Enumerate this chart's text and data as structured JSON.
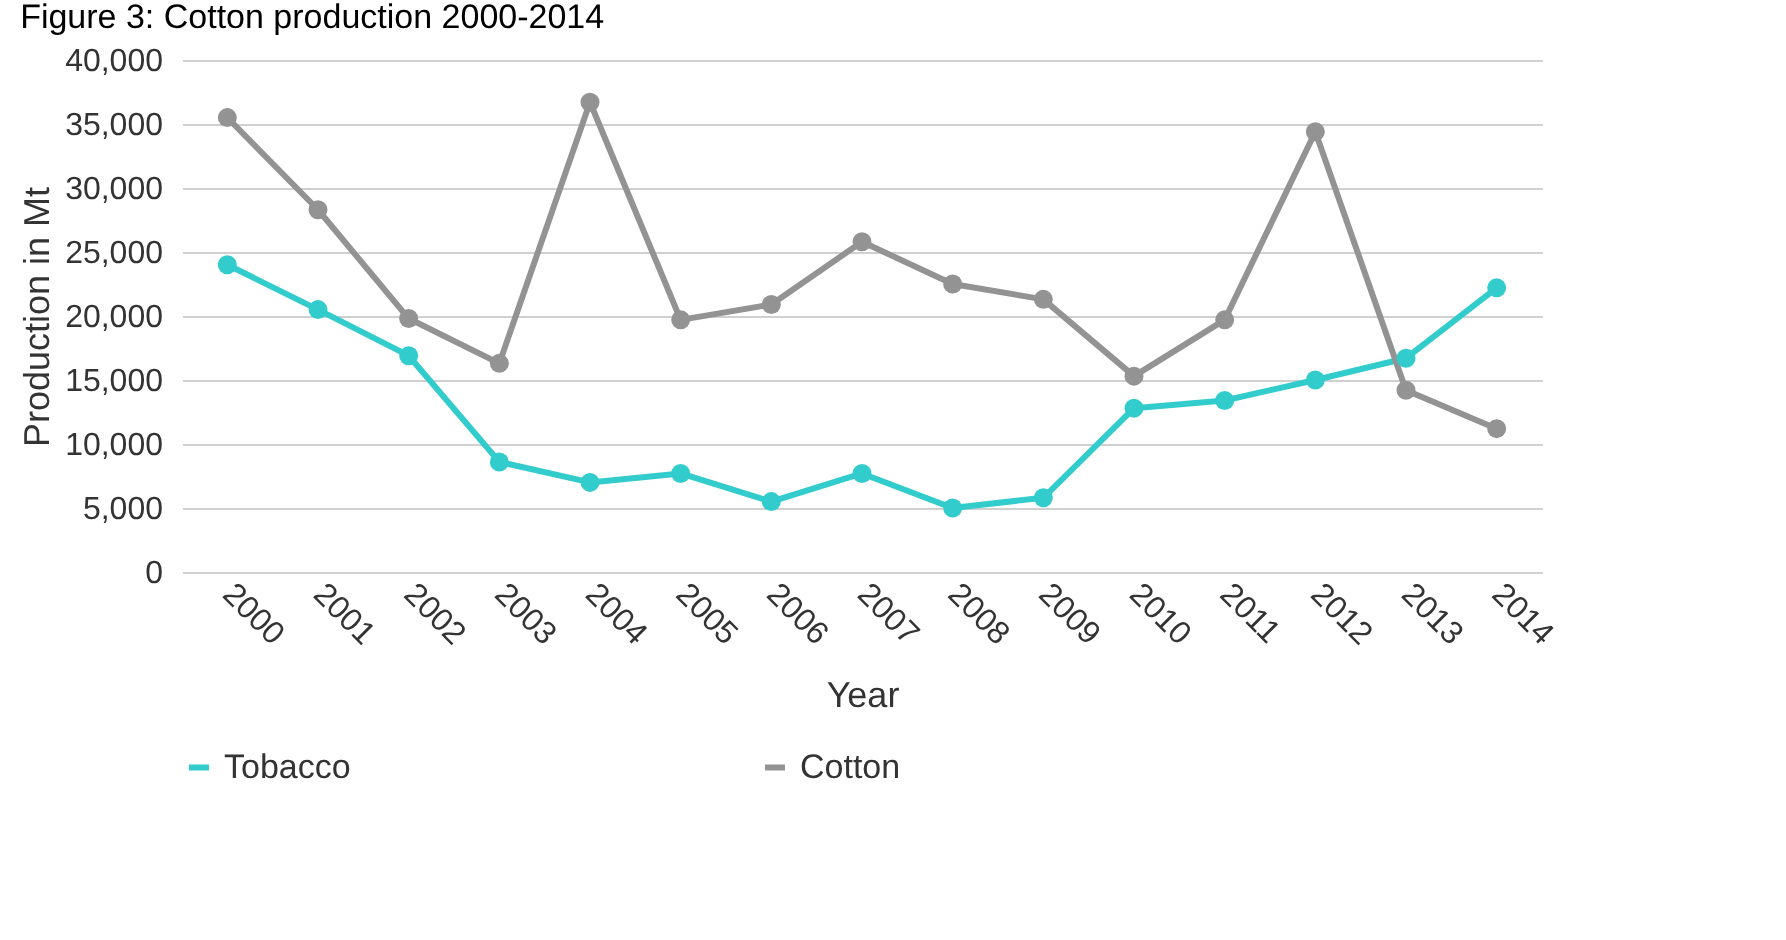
{
  "chart_data": {
    "type": "line",
    "title": "Figure 3: Cotton production 2000-2014",
    "xlabel": "Year",
    "ylabel": "Production in Mt",
    "categories": [
      "2000",
      "2001",
      "2002",
      "2003",
      "2004",
      "2005",
      "2006",
      "2007",
      "2008",
      "2009",
      "2010",
      "2011",
      "2012",
      "2013",
      "2014"
    ],
    "series": [
      {
        "name": "Tobacco",
        "color": "#33cccc",
        "values": [
          24000,
          20500,
          16900,
          8600,
          7000,
          7700,
          5500,
          7700,
          5000,
          5800,
          12800,
          13400,
          15000,
          16700,
          22200
        ]
      },
      {
        "name": "Cotton",
        "color": "#939393",
        "values": [
          35500,
          28300,
          19800,
          16300,
          36700,
          19700,
          20900,
          25800,
          22500,
          21300,
          15300,
          19700,
          34400,
          14200,
          11200
        ]
      }
    ],
    "ylim": [
      0,
      40000
    ],
    "yticks": [
      0,
      {
        "value": 5000,
        "label": "5,000"
      },
      {
        "value": 10000,
        "label": "10,000"
      },
      {
        "value": 15000,
        "label": "15,000"
      },
      {
        "value": 20000,
        "label": "20,000"
      },
      {
        "value": 25000,
        "label": "25,000"
      },
      {
        "value": 30000,
        "label": "30,000"
      },
      {
        "value": 35000,
        "label": "35,000"
      },
      {
        "value": 40000,
        "label": "40,000"
      }
    ],
    "grid": "y",
    "legend": "bottom",
    "marker": "circle",
    "line_style": "solid"
  }
}
